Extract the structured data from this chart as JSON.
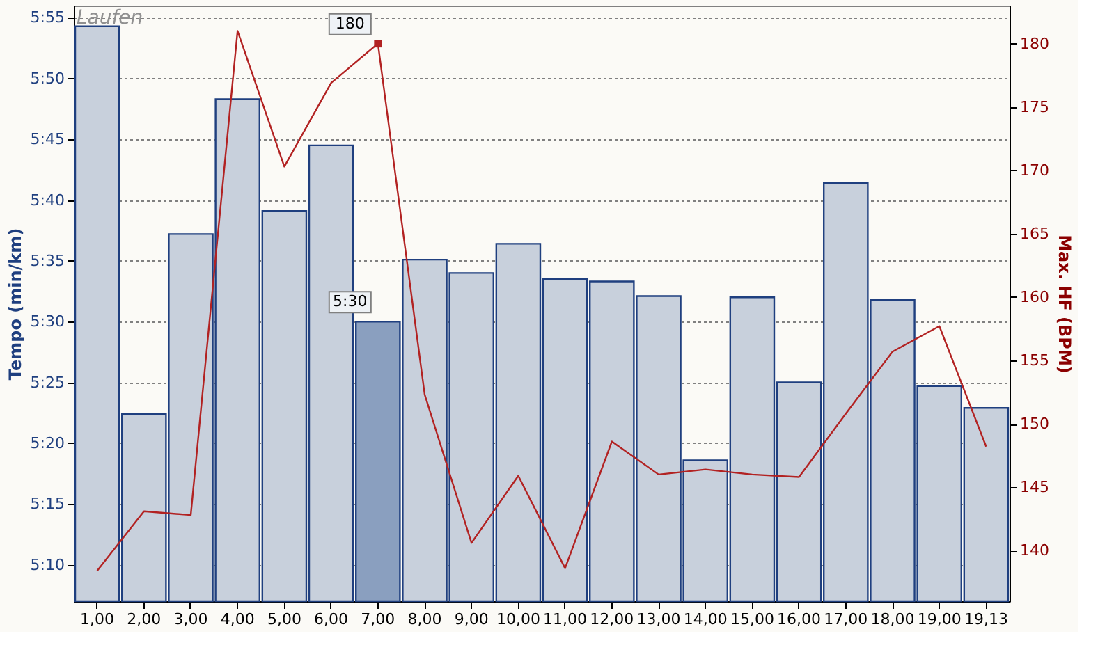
{
  "chart_data": {
    "type": "bar",
    "title": "Laufen",
    "ylabel": "Tempo (min/km)",
    "y2label": "Max. HF (BPM)",
    "categories": [
      "1,00",
      "2,00",
      "3,00",
      "4,00",
      "5,00",
      "6,00",
      "7,00",
      "8,00",
      "9,00",
      "10,00",
      "11,00",
      "12,00",
      "13,00",
      "14,00",
      "15,00",
      "16,00",
      "17,00",
      "18,00",
      "19,00",
      "19,13"
    ],
    "series": [
      {
        "color": "#c8d0dc",
        "colors": [
          "#c8d0dc",
          "#c8d0dc",
          "#c8d0dc",
          "#c8d0dc",
          "#c8d0dc",
          "#c8d0dc",
          "#8a9fbf",
          "#c8d0dc",
          "#c8d0dc",
          "#c8d0dc",
          "#c8d0dc",
          "#c8d0dc",
          "#c8d0dc",
          "#c8d0dc",
          "#c8d0dc",
          "#c8d0dc",
          "#c8d0dc",
          "#c8d0dc",
          "#c8d0dc",
          "#c8d0dc"
        ],
        "values": [
          354.3,
          322.4,
          337.2,
          348.3,
          339.1,
          344.5,
          330,
          335.1,
          334.0,
          336.4,
          333.5,
          333.3,
          332.1,
          318.6,
          332.0,
          325.0,
          341.4,
          331.8,
          324.7,
          322.9
        ],
        "value_labels": [
          null,
          null,
          null,
          null,
          null,
          null,
          "5:30",
          null,
          null,
          null,
          null,
          null,
          null,
          null,
          null,
          null,
          null,
          null,
          null,
          null
        ]
      },
      {
        "type": "line",
        "axis": "y2",
        "color": "#b22222",
        "values": [
          138.4,
          143.1,
          142.8,
          181.0,
          170.3,
          176.9,
          180,
          152.3,
          140.6,
          145.9,
          138.6,
          148.6,
          146.0,
          146.4,
          146.0,
          145.8,
          150.8,
          155.7,
          157.7,
          148.2
        ],
        "value_labels": [
          null,
          null,
          null,
          null,
          null,
          null,
          "180",
          null,
          null,
          null,
          null,
          null,
          null,
          null,
          null,
          null,
          null,
          null,
          null,
          null
        ]
      }
    ],
    "ylim": [
      307,
      356
    ],
    "yticks": [
      {
        "value": 310,
        "label": "5:10"
      },
      {
        "value": 315,
        "label": "5:15"
      },
      {
        "value": 320,
        "label": "5:20"
      },
      {
        "value": 325,
        "label": "5:25"
      },
      {
        "value": 330,
        "label": "5:30"
      },
      {
        "value": 335,
        "label": "5:35"
      },
      {
        "value": 340,
        "label": "5:40"
      },
      {
        "value": 345,
        "label": "5:45"
      },
      {
        "value": 350,
        "label": "5:50"
      },
      {
        "value": 355,
        "label": "5:55"
      }
    ],
    "y2lim": [
      136,
      183
    ],
    "y2ticks": [
      140,
      145,
      150,
      155,
      160,
      165,
      170,
      175,
      180
    ],
    "grid": "y",
    "line_style": "solid"
  }
}
